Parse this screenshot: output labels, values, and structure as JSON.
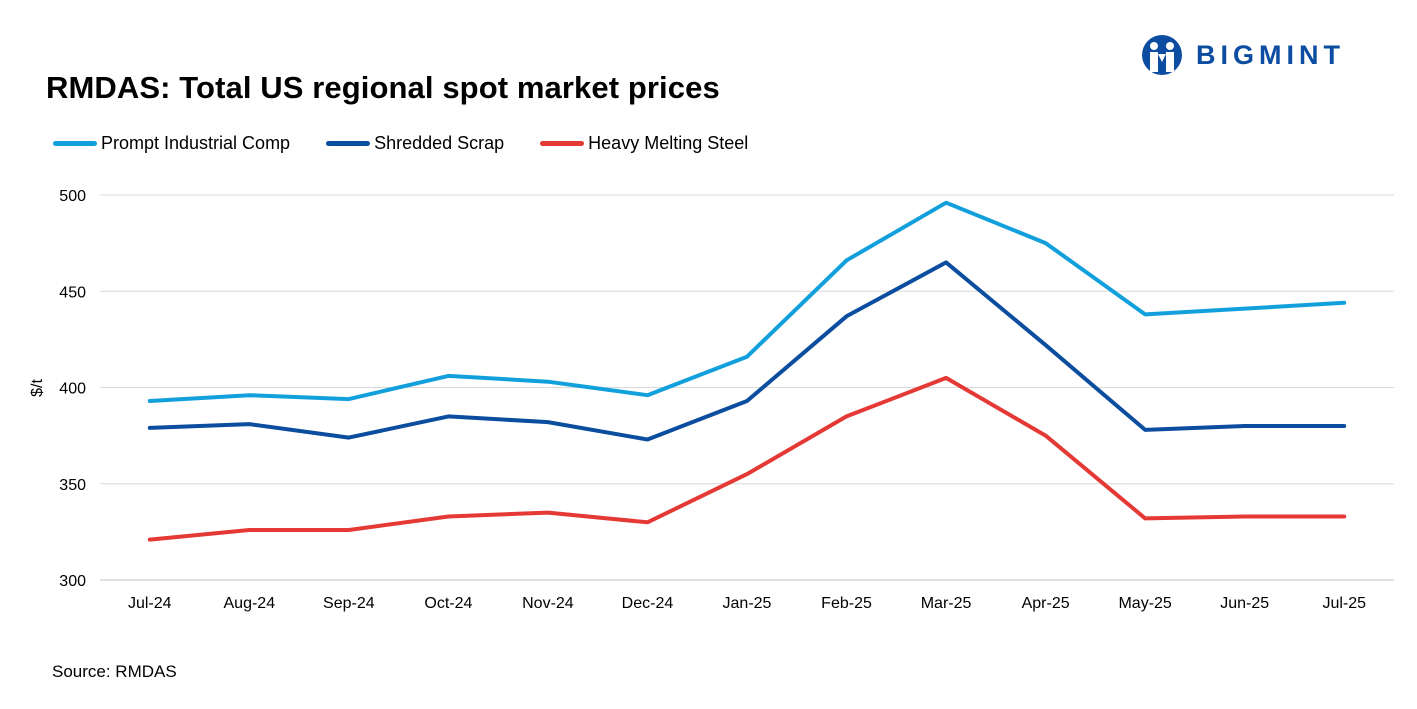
{
  "title": "RMDAS: Total US regional spot market prices",
  "logo": {
    "text": "BIGMINT",
    "color": "#0d4da1"
  },
  "source": "Source: RMDAS",
  "chart_data": {
    "type": "line",
    "title": "RMDAS: Total US regional spot market prices",
    "xlabel": "",
    "ylabel": "$/t",
    "ylim": [
      300,
      500
    ],
    "yticks": [
      300,
      350,
      400,
      450,
      500
    ],
    "grid": true,
    "legend_position": "top-left",
    "categories": [
      "Jul-24",
      "Aug-24",
      "Sep-24",
      "Oct-24",
      "Nov-24",
      "Dec-24",
      "Jan-25",
      "Feb-25",
      "Mar-25",
      "Apr-25",
      "May-25",
      "Jun-25",
      "Jul-25"
    ],
    "series": [
      {
        "name": "Prompt Industrial Comp",
        "color": "#12a0dc",
        "values": [
          393,
          396,
          394,
          406,
          403,
          396,
          416,
          466,
          496,
          475,
          438,
          441,
          444
        ]
      },
      {
        "name": "Shredded Scrap",
        "color": "#0b4d9e",
        "values": [
          379,
          381,
          374,
          385,
          382,
          373,
          393,
          437,
          465,
          422,
          378,
          380,
          380
        ]
      },
      {
        "name": "Heavy Melting Steel",
        "color": "#e53935",
        "values": [
          321,
          326,
          326,
          333,
          335,
          330,
          355,
          385,
          405,
          375,
          332,
          333,
          333
        ]
      }
    ]
  }
}
